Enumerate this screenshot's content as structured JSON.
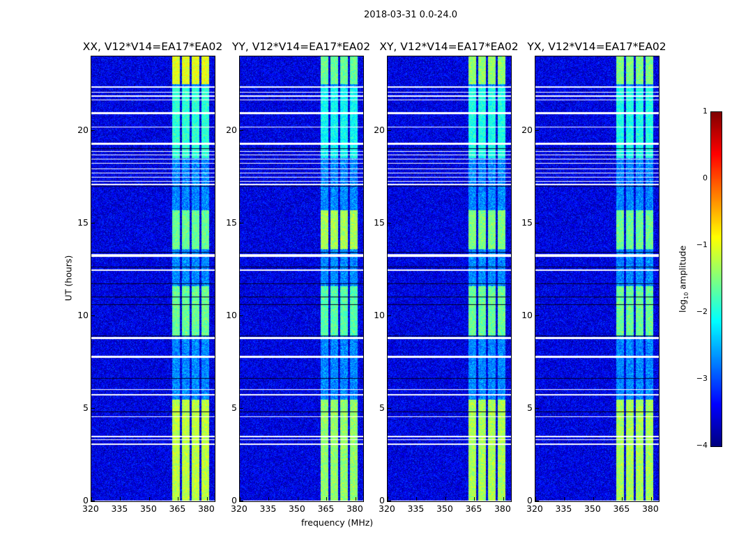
{
  "suptitle": "2018-03-31 0.0-24.0",
  "xlabel": "frequency (MHz)",
  "ylabel": "UT (hours)",
  "colorbar": {
    "label_prefix": "log",
    "label_sub": "10",
    "label_suffix": " amplitude",
    "ticks": [
      "1",
      "0",
      "−1",
      "−2",
      "−3",
      "−4"
    ],
    "tick_values": [
      1,
      0,
      -1,
      -2,
      -3,
      -4
    ],
    "range": [
      -4,
      1
    ],
    "colormap": "jet"
  },
  "chart_data": {
    "type": "heatmap",
    "x_range_mhz": [
      320,
      384
    ],
    "y_range_hours": [
      0,
      24
    ],
    "x_ticks": [
      "320",
      "335",
      "350",
      "365",
      "380"
    ],
    "x_tick_values": [
      320,
      335,
      350,
      365,
      380
    ],
    "y_ticks": [
      "0",
      "5",
      "10",
      "15",
      "20"
    ],
    "y_tick_values": [
      0,
      5,
      10,
      15,
      20
    ],
    "background_log_amp": -3.5,
    "rfi_subchannels_mhz": [
      [
        362,
        366
      ],
      [
        367,
        371
      ],
      [
        372,
        376
      ],
      [
        377,
        381
      ]
    ],
    "flagged_hours": [
      [
        22.3,
        22.4
      ],
      [
        22.03,
        22.09
      ],
      [
        21.84,
        21.9
      ],
      [
        21.62,
        21.68
      ],
      [
        20.9,
        20.98
      ],
      [
        20.16,
        20.22
      ],
      [
        19.22,
        19.34
      ],
      [
        18.86,
        18.9
      ],
      [
        18.67,
        18.71
      ],
      [
        18.44,
        18.48
      ],
      [
        18.22,
        18.26
      ],
      [
        17.92,
        17.96
      ],
      [
        17.7,
        17.74
      ],
      [
        17.47,
        17.51
      ],
      [
        17.25,
        17.29
      ],
      [
        17.05,
        17.11
      ],
      [
        13.2,
        13.35
      ],
      [
        12.42,
        12.52
      ],
      [
        8.76,
        8.86
      ],
      [
        7.74,
        7.84
      ],
      [
        6.0,
        6.06
      ],
      [
        5.7,
        5.78
      ],
      [
        4.53,
        4.6
      ],
      [
        3.45,
        3.52
      ],
      [
        3.3,
        3.36
      ],
      [
        3.06,
        3.12
      ],
      [
        0.0,
        0.05
      ]
    ],
    "zero_hours": [
      [
        19.02,
        19.06
      ],
      [
        16.98,
        17.02
      ],
      [
        13.42,
        13.46
      ],
      [
        12.62,
        12.66
      ],
      [
        11.7,
        11.74
      ],
      [
        11.0,
        11.04
      ],
      [
        10.6,
        10.64
      ],
      [
        6.6,
        6.66
      ],
      [
        4.8,
        4.86
      ],
      [
        8.9,
        8.94
      ]
    ],
    "panels": [
      {
        "title": "XX, V12*V14=EA17*EA02",
        "active_intervals": [
          [
            0,
            5.5,
            -1.2
          ],
          [
            8.9,
            11.6,
            -1.6
          ],
          [
            13.6,
            15.7,
            -1.6
          ],
          [
            18.5,
            22.3,
            -1.9
          ],
          [
            22.5,
            24,
            -1.0
          ]
        ]
      },
      {
        "title": "YY, V12*V14=EA17*EA02",
        "active_intervals": [
          [
            0,
            5.5,
            -1.4
          ],
          [
            8.9,
            11.6,
            -1.7
          ],
          [
            13.6,
            15.7,
            -1.3
          ],
          [
            18.5,
            22.3,
            -2.1
          ],
          [
            22.5,
            24,
            -1.6
          ]
        ]
      },
      {
        "title": "XY, V12*V14=EA17*EA02",
        "active_intervals": [
          [
            0,
            5.5,
            -1.3
          ],
          [
            8.9,
            11.6,
            -1.6
          ],
          [
            13.6,
            15.7,
            -1.5
          ],
          [
            18.5,
            22.3,
            -2.0
          ],
          [
            22.5,
            24,
            -1.4
          ]
        ]
      },
      {
        "title": "YX, V12*V14=EA17*EA02",
        "active_intervals": [
          [
            0,
            5.5,
            -1.3
          ],
          [
            8.9,
            11.6,
            -1.6
          ],
          [
            13.6,
            15.7,
            -1.6
          ],
          [
            18.5,
            22.3,
            -2.0
          ],
          [
            22.5,
            24,
            -1.5
          ]
        ]
      }
    ]
  }
}
